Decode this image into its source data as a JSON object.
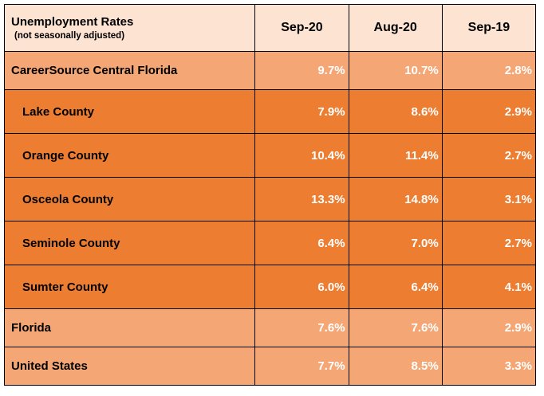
{
  "table": {
    "header": {
      "title": "Unemployment Rates",
      "subtitle": "(not seasonally adjusted)",
      "columns": [
        "Sep-20",
        "Aug-20",
        "Sep-19"
      ]
    },
    "rows": [
      {
        "name": "CareerSource Central Florida",
        "level": "summary",
        "values": [
          "9.7%",
          "10.7%",
          "2.8%"
        ]
      },
      {
        "name": "Lake County",
        "level": "county",
        "values": [
          "7.9%",
          "8.6%",
          "2.9%"
        ]
      },
      {
        "name": "Orange County",
        "level": "county",
        "values": [
          "10.4%",
          "11.4%",
          "2.7%"
        ]
      },
      {
        "name": "Osceola County",
        "level": "county",
        "values": [
          "13.3%",
          "14.8%",
          "3.1%"
        ]
      },
      {
        "name": "Seminole County",
        "level": "county",
        "values": [
          "6.4%",
          "7.0%",
          "2.7%"
        ]
      },
      {
        "name": "Sumter County",
        "level": "county",
        "values": [
          "6.0%",
          "6.4%",
          "4.1%"
        ]
      },
      {
        "name": "Florida",
        "level": "summary",
        "values": [
          "7.6%",
          "7.6%",
          "2.9%"
        ]
      },
      {
        "name": "United States",
        "level": "summary",
        "values": [
          "7.7%",
          "8.5%",
          "3.3%"
        ]
      }
    ],
    "colors": {
      "header_bg": "#fde3d2",
      "summary_bg": "#f4a675",
      "county_bg": "#ed7d31",
      "value_text": "#ffffff"
    }
  }
}
